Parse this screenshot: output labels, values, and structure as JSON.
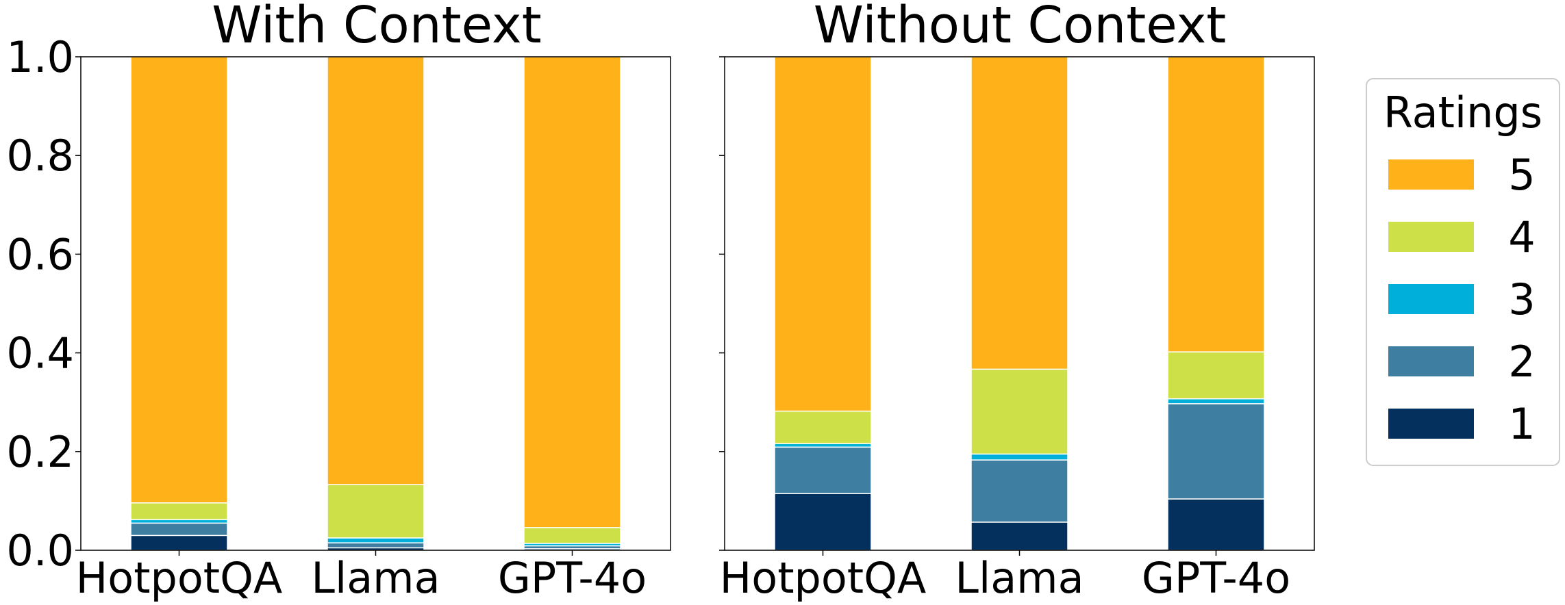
{
  "figure": {
    "legend_title": "Ratings",
    "legend_placement": "right, outside plots",
    "rating_levels": [
      "5",
      "4",
      "3",
      "2",
      "1"
    ],
    "colors": {
      "1": "#03305d",
      "2": "#3d7ea1",
      "3": "#00b0da",
      "4": "#cee047",
      "5": "#feb118"
    }
  },
  "chart_data": [
    {
      "type": "bar",
      "stacked": true,
      "title": "With Context",
      "categories": [
        "HotpotQA",
        "Llama",
        "GPT-4o"
      ],
      "ylim": [
        0,
        1.0
      ],
      "yticks": [
        "0.0",
        "0.2",
        "0.4",
        "0.6",
        "0.8",
        "1.0"
      ],
      "grid": false,
      "series": [
        {
          "name": "1",
          "values": [
            0.03,
            0.005,
            0.003
          ]
        },
        {
          "name": "2",
          "values": [
            0.025,
            0.01,
            0.006
          ]
        },
        {
          "name": "3",
          "values": [
            0.007,
            0.01,
            0.005
          ]
        },
        {
          "name": "4",
          "values": [
            0.034,
            0.108,
            0.032
          ]
        },
        {
          "name": "5",
          "values": [
            0.904,
            0.867,
            0.954
          ]
        }
      ]
    },
    {
      "type": "bar",
      "stacked": true,
      "title": "Without Context",
      "categories": [
        "HotpotQA",
        "Llama",
        "GPT-4o"
      ],
      "ylim": [
        0,
        1.0
      ],
      "grid": false,
      "series": [
        {
          "name": "1",
          "values": [
            0.115,
            0.057,
            0.104
          ]
        },
        {
          "name": "2",
          "values": [
            0.094,
            0.126,
            0.193
          ]
        },
        {
          "name": "3",
          "values": [
            0.007,
            0.012,
            0.01
          ]
        },
        {
          "name": "4",
          "values": [
            0.066,
            0.172,
            0.095
          ]
        },
        {
          "name": "5",
          "values": [
            0.718,
            0.633,
            0.598
          ]
        }
      ]
    }
  ]
}
